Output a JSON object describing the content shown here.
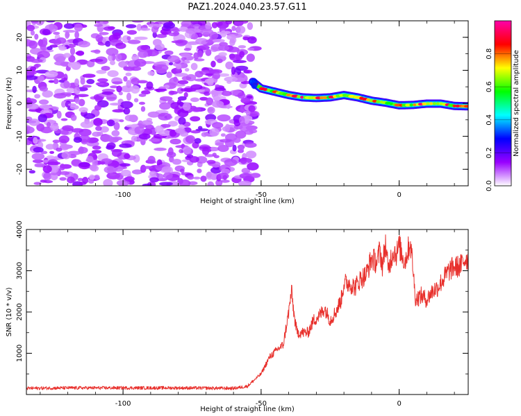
{
  "title": "PAZ1.2024.040.23.57.G11",
  "chart_data": [
    {
      "type": "heatmap",
      "xlabel": "Height of straight line (km)",
      "ylabel": "Frequency (Hz)",
      "xlim": [
        -135,
        25
      ],
      "ylim": [
        -25,
        25
      ],
      "xticks": [
        -100,
        -50,
        0
      ],
      "yticks": [
        -20,
        -10,
        0,
        10,
        20
      ],
      "noise_region_x": [
        -135,
        -52
      ],
      "ridge": {
        "x": [
          -53,
          -50,
          -45,
          -40,
          -35,
          -30,
          -25,
          -20,
          -15,
          -10,
          -5,
          0,
          5,
          10,
          15,
          20,
          25
        ],
        "y": [
          6.5,
          4.5,
          3.5,
          2.5,
          1.8,
          1.6,
          1.8,
          2.5,
          1.8,
          0.8,
          0.2,
          -0.6,
          -0.5,
          -0.1,
          -0.1,
          -0.8,
          -0.9
        ]
      },
      "colorbar": {
        "label": "Normalized spectral amplitude",
        "range": [
          0,
          1
        ],
        "ticks": [
          "0.0",
          "0.2",
          "0.4",
          "0.6",
          "0.8"
        ],
        "colors": [
          "#ffffff",
          "#9900ff",
          "#0000ff",
          "#00ffff",
          "#00ff00",
          "#ffff00",
          "#ff0000",
          "#ff00aa"
        ]
      }
    },
    {
      "type": "line",
      "xlabel": "Height of straight line (km)",
      "ylabel": "SNR (10 * v/v)",
      "xlim": [
        -135,
        25
      ],
      "ylim": [
        0,
        4000
      ],
      "xticks": [
        -100,
        -50,
        0
      ],
      "yticks": [
        1000,
        2000,
        3000,
        4000
      ],
      "color": "#e8302c",
      "series": [
        {
          "x": [
            -135,
            -120,
            -100,
            -80,
            -60,
            -55,
            -50,
            -47,
            -44,
            -42,
            -40,
            -39,
            -38,
            -37,
            -35,
            -33,
            -31,
            -29,
            -27,
            -25,
            -23,
            -21,
            -20,
            -18,
            -16,
            -14,
            -12,
            -10,
            -8,
            -7,
            -6,
            -5,
            -4,
            -3,
            -2,
            -1,
            0,
            2,
            4,
            5,
            5.5,
            6,
            8,
            10,
            12,
            14,
            16,
            18,
            20,
            22,
            24,
            25
          ],
          "y": [
            150,
            160,
            160,
            160,
            150,
            200,
            500,
            900,
            1100,
            1200,
            2000,
            2500,
            1900,
            1500,
            1500,
            1500,
            1800,
            1900,
            2100,
            1800,
            2000,
            2300,
            2700,
            2700,
            2600,
            2800,
            2900,
            3300,
            3200,
            3500,
            3100,
            3700,
            3000,
            3300,
            3500,
            3400,
            3600,
            3200,
            3700,
            3100,
            2600,
            2300,
            2400,
            2300,
            2500,
            2600,
            2800,
            3000,
            3100,
            3100,
            3300,
            3300
          ]
        }
      ]
    }
  ]
}
